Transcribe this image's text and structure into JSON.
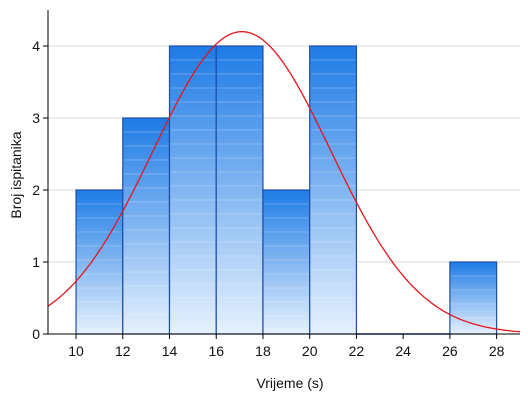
{
  "chart_data": {
    "type": "bar",
    "title": "",
    "xlabel": "Vrijeme (s)",
    "ylabel": "Broj ispitanika",
    "xlim": [
      8.8,
      29
    ],
    "ylim": [
      0,
      4.5
    ],
    "xticks": [
      "10",
      "12",
      "14",
      "16",
      "18",
      "20",
      "22",
      "24",
      "26",
      "28"
    ],
    "yticks": [
      "0",
      "1",
      "2",
      "3",
      "4"
    ],
    "grid": true,
    "bins": [
      {
        "x0": 10,
        "x1": 12,
        "count": 2
      },
      {
        "x0": 12,
        "x1": 14,
        "count": 3
      },
      {
        "x0": 14,
        "x1": 16,
        "count": 4
      },
      {
        "x0": 16,
        "x1": 18,
        "count": 4
      },
      {
        "x0": 18,
        "x1": 20,
        "count": 2
      },
      {
        "x0": 20,
        "x1": 22,
        "count": 4
      },
      {
        "x0": 22,
        "x1": 24,
        "count": 0
      },
      {
        "x0": 24,
        "x1": 26,
        "count": 0
      },
      {
        "x0": 26,
        "x1": 28,
        "count": 1
      }
    ],
    "normal_curve": {
      "mean": 17.1,
      "sd": 3.8,
      "scale": 40
    },
    "colors": {
      "bar_top": "#1e7be6",
      "bar_bottom": "#e6f1fd",
      "bar_border": "#1c4fa8",
      "curve": "#e8141b",
      "grid": "#d9d9d9",
      "axis": "#000000"
    }
  }
}
